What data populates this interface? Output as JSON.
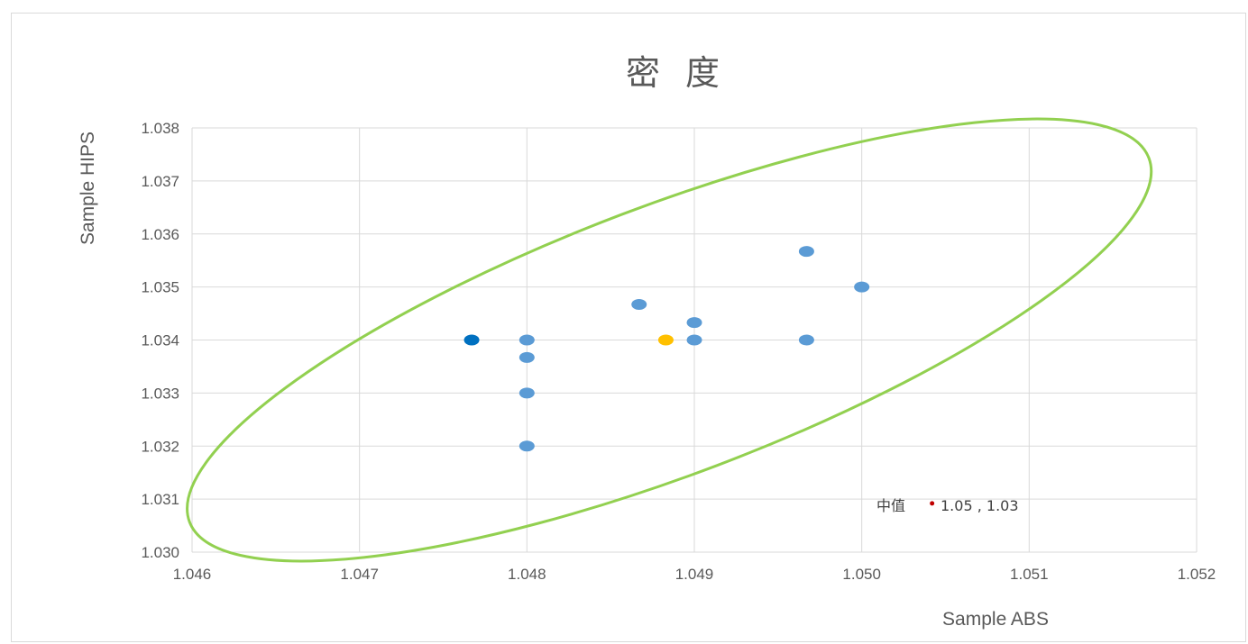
{
  "chart_data": {
    "type": "scatter",
    "title": "密 度",
    "xlabel": "Sample ABS",
    "ylabel": "Sample HIPS",
    "xlim": [
      1.046,
      1.052
    ],
    "ylim": [
      1.03,
      1.038
    ],
    "x_ticks": [
      "1.046",
      "1.047",
      "1.048",
      "1.049",
      "1.050",
      "1.051",
      "1.052"
    ],
    "y_ticks": [
      "1.030",
      "1.031",
      "1.032",
      "1.033",
      "1.034",
      "1.035",
      "1.036",
      "1.037",
      "1.038"
    ],
    "grid": true,
    "series": [
      {
        "color": "#5b9bd5",
        "points": [
          {
            "x": 1.048,
            "y": 1.034
          },
          {
            "x": 1.048,
            "y": 1.03367
          },
          {
            "x": 1.048,
            "y": 1.033
          },
          {
            "x": 1.048,
            "y": 1.032
          },
          {
            "x": 1.04867,
            "y": 1.03467
          },
          {
            "x": 1.049,
            "y": 1.03433
          },
          {
            "x": 1.049,
            "y": 1.034
          },
          {
            "x": 1.04967,
            "y": 1.03567
          },
          {
            "x": 1.04967,
            "y": 1.034
          },
          {
            "x": 1.05,
            "y": 1.035
          }
        ]
      },
      {
        "color": "#0070c0",
        "points": [
          {
            "x": 1.04767,
            "y": 1.034
          }
        ]
      },
      {
        "color": "#ffc000",
        "points": [
          {
            "x": 1.04883,
            "y": 1.034
          }
        ]
      }
    ],
    "ellipse": {
      "color": "#92d050",
      "center": [
        1.04885,
        1.034
      ],
      "angle_deg": -20.8,
      "semi_axes": [
        569,
        149
      ]
    },
    "median_marker": {
      "x": 1.05042,
      "y": 1.03092,
      "color": "#c00000"
    },
    "annotation": {
      "prefix": "中值",
      "value": "1.05 , 1.03"
    }
  }
}
